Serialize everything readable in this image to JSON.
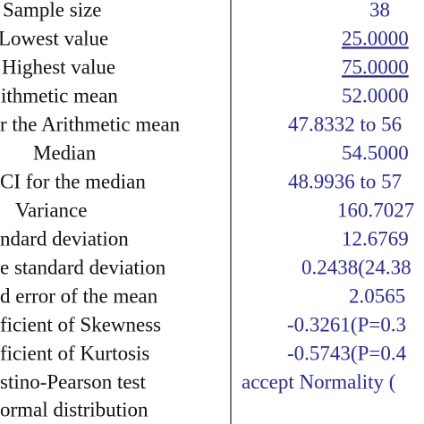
{
  "table": {
    "rows": [
      {
        "label": [
          "Sample size"
        ],
        "value": "38"
      },
      {
        "label": [
          "Lowest value"
        ],
        "value": "25.0000",
        "link": true
      },
      {
        "label": [
          "Highest value"
        ],
        "value": "75.0000",
        "link": true
      },
      {
        "label": [
          "ithmetic mean"
        ],
        "value": "52.0000"
      },
      {
        "label": [
          "r the Arithmetic mean"
        ],
        "value": "47.8332 to 56"
      },
      {
        "label": [
          "Median"
        ],
        "value": "54.5000"
      },
      {
        "label": [
          "CI for the median"
        ],
        "value": "48.9936 to 57"
      },
      {
        "label": [
          "Variance"
        ],
        "value": "160.7027"
      },
      {
        "label": [
          "ndard deviation"
        ],
        "value": "12.6769"
      },
      {
        "label": [
          "e standard deviation"
        ],
        "value": "0.2438(24.38"
      },
      {
        "label": [
          "d error of the mean"
        ],
        "value": "2.0565"
      },
      {
        "label": [
          "ficient of Skewness"
        ],
        "value": "-0.3261(P=0.3"
      },
      {
        "label": [
          "ficient of Kurtosis"
        ],
        "value": "-0.5743(P=0.4"
      },
      {
        "label": [
          "stino-Pearson test",
          "ormal distribution"
        ],
        "value": "accept Normality ("
      }
    ]
  }
}
